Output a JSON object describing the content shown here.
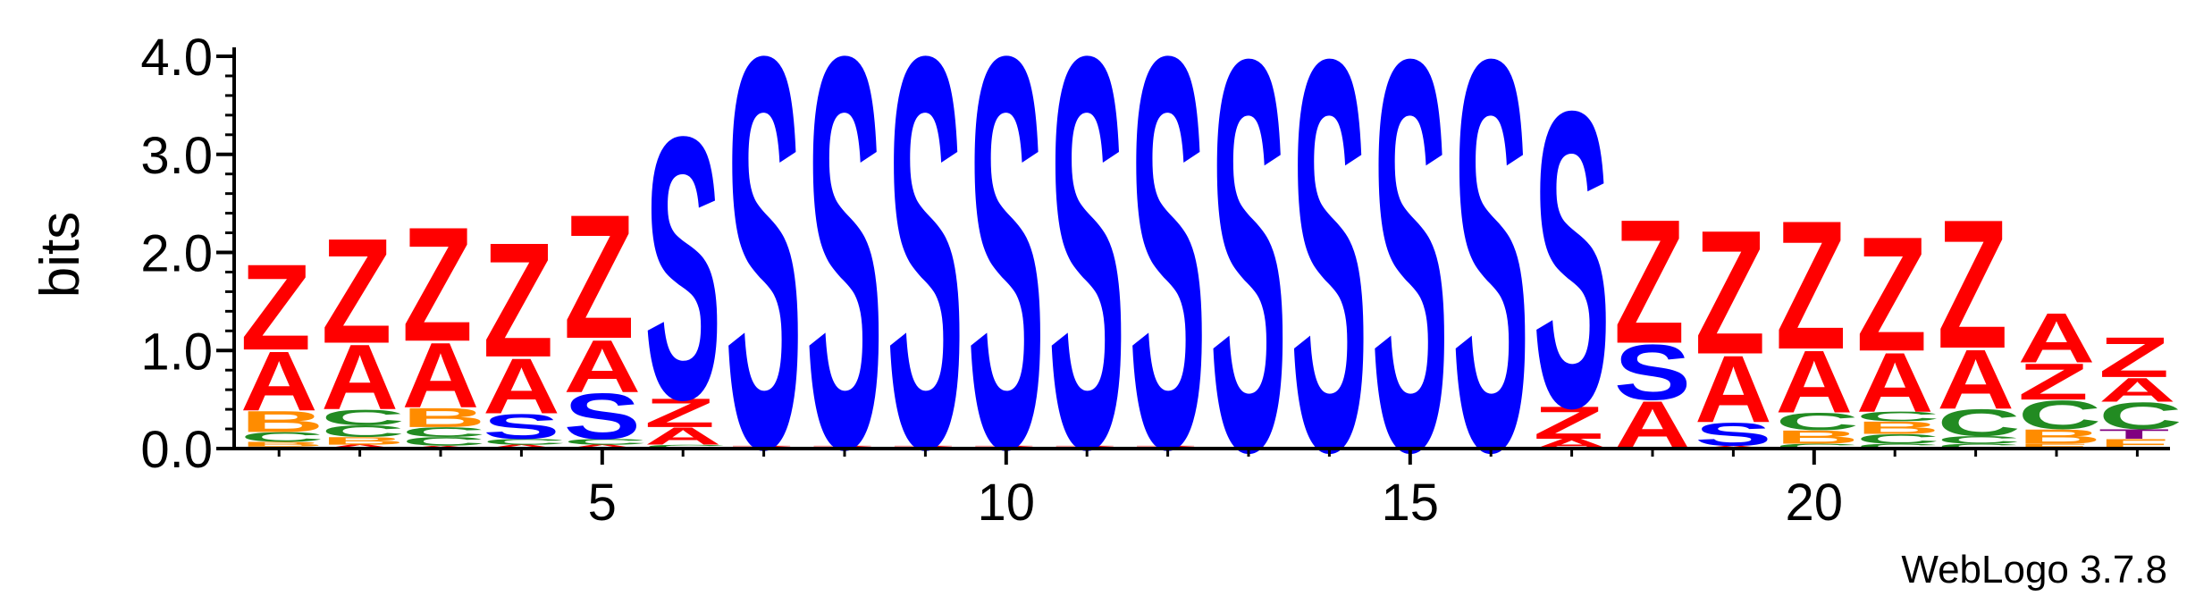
{
  "chart_data": {
    "type": "sequence-logo",
    "ylabel": "bits",
    "ylim": [
      0,
      4.0
    ],
    "y_ticks": [
      "0.0",
      "1.0",
      "2.0",
      "3.0",
      "4.0"
    ],
    "x_ticks": [
      "5",
      "10",
      "15",
      "20"
    ],
    "x_tick_positions": [
      5,
      10,
      15,
      20
    ],
    "positions": [
      1,
      2,
      3,
      4,
      5,
      6,
      7,
      8,
      9,
      10,
      11,
      12,
      13,
      14,
      15,
      16,
      17,
      18,
      19,
      20,
      21,
      22,
      23,
      24
    ],
    "colors": {
      "Z": "#ff0000",
      "A": "#ff0000",
      "S": "#0000ff",
      "C": "#228b22",
      "B": "#ff8c00",
      "T": "#800080",
      "F": "#ff8c00"
    },
    "stacks": [
      [
        {
          "l": "A",
          "h": 0.02
        },
        {
          "l": "B",
          "h": 0.05
        },
        {
          "l": "C",
          "h": 0.1
        },
        {
          "l": "B",
          "h": 0.22
        },
        {
          "l": "A",
          "h": 0.62
        },
        {
          "l": "Z",
          "h": 0.9
        }
      ],
      [
        {
          "l": "A",
          "h": 0.04
        },
        {
          "l": "B",
          "h": 0.08
        },
        {
          "l": "C",
          "h": 0.12
        },
        {
          "l": "C",
          "h": 0.16
        },
        {
          "l": "A",
          "h": 0.68
        },
        {
          "l": "Z",
          "h": 1.1
        }
      ],
      [
        {
          "l": "A",
          "h": 0.03
        },
        {
          "l": "C",
          "h": 0.09
        },
        {
          "l": "C",
          "h": 0.1
        },
        {
          "l": "B",
          "h": 0.2
        },
        {
          "l": "A",
          "h": 0.68
        },
        {
          "l": "Z",
          "h": 1.2
        }
      ],
      [
        {
          "l": "A",
          "h": 0.04
        },
        {
          "l": "C",
          "h": 0.06
        },
        {
          "l": "S",
          "h": 0.26
        },
        {
          "l": "A",
          "h": 0.58
        },
        {
          "l": "Z",
          "h": 1.2
        }
      ],
      [
        {
          "l": "A",
          "h": 0.04
        },
        {
          "l": "C",
          "h": 0.06
        },
        {
          "l": "S",
          "h": 0.48
        },
        {
          "l": "A",
          "h": 0.55
        },
        {
          "l": "Z",
          "h": 1.3
        }
      ],
      [
        {
          "l": "C",
          "h": 0.04
        },
        {
          "l": "A",
          "h": 0.18
        },
        {
          "l": "Z",
          "h": 0.3
        },
        {
          "l": "S",
          "h": 2.75
        }
      ],
      [
        {
          "l": "Z",
          "h": 0.03
        },
        {
          "l": "S",
          "h": 4.1
        }
      ],
      [
        {
          "l": "Z",
          "h": 0.03
        },
        {
          "l": "S",
          "h": 4.1
        }
      ],
      [
        {
          "l": "Z",
          "h": 0.03
        },
        {
          "l": "S",
          "h": 4.1
        }
      ],
      [
        {
          "l": "Z",
          "h": 0.03
        },
        {
          "l": "S",
          "h": 4.1
        }
      ],
      [
        {
          "l": "Z",
          "h": 0.03
        },
        {
          "l": "S",
          "h": 4.1
        }
      ],
      [
        {
          "l": "Z",
          "h": 0.03
        },
        {
          "l": "S",
          "h": 4.1
        }
      ],
      [
        {
          "l": "S",
          "h": 4.1
        }
      ],
      [
        {
          "l": "S",
          "h": 4.1
        }
      ],
      [
        {
          "l": "S",
          "h": 4.1
        }
      ],
      [
        {
          "l": "S",
          "h": 4.1
        }
      ],
      [
        {
          "l": "A",
          "h": 0.1
        },
        {
          "l": "Z",
          "h": 0.34
        },
        {
          "l": "S",
          "h": 3.1
        }
      ],
      [
        {
          "l": "A",
          "h": 0.5
        },
        {
          "l": "S",
          "h": 0.58
        },
        {
          "l": "Z",
          "h": 1.3
        }
      ],
      [
        {
          "l": "A",
          "h": 0.03
        },
        {
          "l": "S",
          "h": 0.24
        },
        {
          "l": "A",
          "h": 0.7
        },
        {
          "l": "Z",
          "h": 1.3
        }
      ],
      [
        {
          "l": "C",
          "h": 0.05
        },
        {
          "l": "B",
          "h": 0.14
        },
        {
          "l": "C",
          "h": 0.18
        },
        {
          "l": "A",
          "h": 0.65
        },
        {
          "l": "Z",
          "h": 1.35
        }
      ],
      [
        {
          "l": "C",
          "h": 0.05
        },
        {
          "l": "C",
          "h": 0.1
        },
        {
          "l": "B",
          "h": 0.13
        },
        {
          "l": "C",
          "h": 0.1
        },
        {
          "l": "A",
          "h": 0.62
        },
        {
          "l": "Z",
          "h": 1.2
        }
      ],
      [
        {
          "l": "C",
          "h": 0.05
        },
        {
          "l": "C",
          "h": 0.08
        },
        {
          "l": "C",
          "h": 0.28
        },
        {
          "l": "A",
          "h": 0.62
        },
        {
          "l": "Z",
          "h": 1.35
        }
      ],
      [
        {
          "l": "F",
          "h": 0.05
        },
        {
          "l": "B",
          "h": 0.15
        },
        {
          "l": "C",
          "h": 0.3
        },
        {
          "l": "Z",
          "h": 0.38
        },
        {
          "l": "A",
          "h": 0.52
        }
      ],
      [
        {
          "l": "F",
          "h": 0.1
        },
        {
          "l": "T",
          "h": 0.1
        },
        {
          "l": "C",
          "h": 0.28
        },
        {
          "l": "A",
          "h": 0.25
        },
        {
          "l": "Z",
          "h": 0.42
        }
      ]
    ]
  },
  "credit": "WebLogo 3.7.8"
}
